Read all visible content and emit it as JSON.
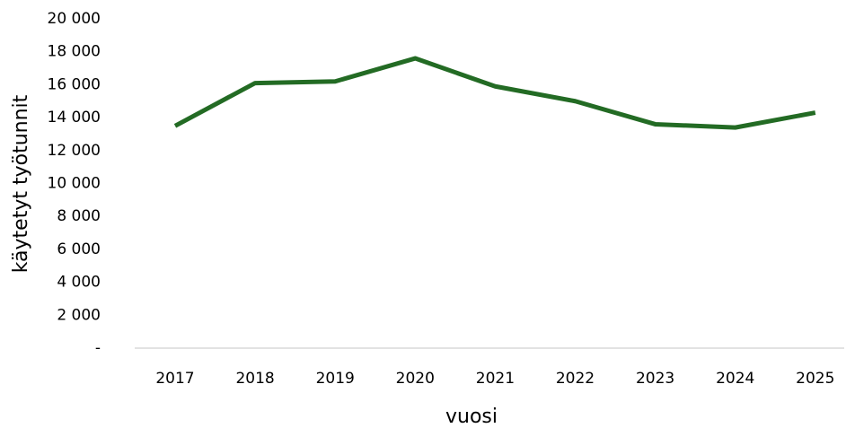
{
  "chart_data": {
    "type": "line",
    "x_label": "vuosi",
    "y_label": "käytetyt työtunnit",
    "categories": [
      "2017",
      "2018",
      "2019",
      "2020",
      "2021",
      "2022",
      "2023",
      "2024",
      "2025"
    ],
    "values": [
      13500,
      16100,
      16200,
      17600,
      15900,
      15000,
      13600,
      13400,
      14300
    ],
    "color": "#236b24",
    "ylim": [
      0,
      20000
    ],
    "yticks": [
      {
        "value": 0,
        "label": "-"
      },
      {
        "value": 2000,
        "label": "2 000"
      },
      {
        "value": 4000,
        "label": "4 000"
      },
      {
        "value": 6000,
        "label": "6 000"
      },
      {
        "value": 8000,
        "label": "8 000"
      },
      {
        "value": 10000,
        "label": "10 000"
      },
      {
        "value": 12000,
        "label": "12 000"
      },
      {
        "value": 14000,
        "label": "14 000"
      },
      {
        "value": 16000,
        "label": "16 000"
      },
      {
        "value": 18000,
        "label": "18 000"
      },
      {
        "value": 20000,
        "label": "20 000"
      }
    ],
    "grid": false
  }
}
